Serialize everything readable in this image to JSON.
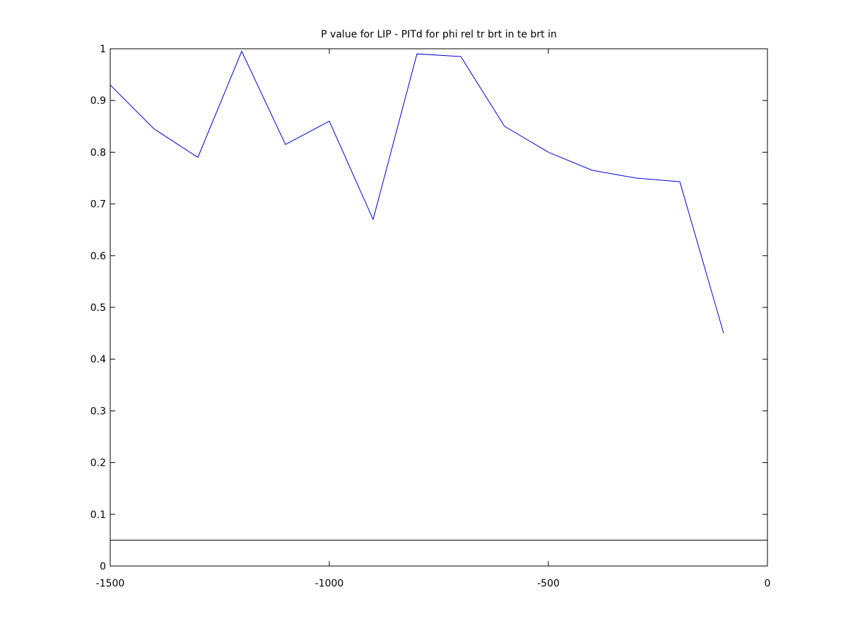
{
  "chart_data": {
    "type": "line",
    "title": "P value for LIP - PITd for phi rel tr brt in te brt in",
    "xlabel": "",
    "ylabel": "",
    "xlim": [
      -1500,
      0
    ],
    "ylim": [
      0,
      1
    ],
    "xticks": [
      -1500,
      -1000,
      -500,
      0
    ],
    "xtick_labels": [
      "-1500",
      "-1000",
      "-500",
      "0"
    ],
    "yticks": [
      0,
      0.1,
      0.2,
      0.3,
      0.4,
      0.5,
      0.6,
      0.7,
      0.8,
      0.9,
      1
    ],
    "ytick_labels": [
      "0",
      "0.1",
      "0.2",
      "0.3",
      "0.4",
      "0.5",
      "0.6",
      "0.7",
      "0.8",
      "0.9",
      "1"
    ],
    "grid": false,
    "series": [
      {
        "color": "#0000cc",
        "x": [
          -1500,
          -1400,
          -1300,
          -1200,
          -1100,
          -1000,
          -900,
          -800,
          -700,
          -600,
          -500,
          -400,
          -300,
          -200,
          -100
        ],
        "y": [
          0.93,
          0.845,
          0.79,
          0.995,
          0.815,
          0.86,
          0.67,
          0.99,
          0.985,
          0.85,
          0.8,
          0.765,
          0.75,
          0.743,
          0.45
        ]
      }
    ],
    "reference_line": {
      "y": 0.05,
      "color": "#000000"
    }
  }
}
